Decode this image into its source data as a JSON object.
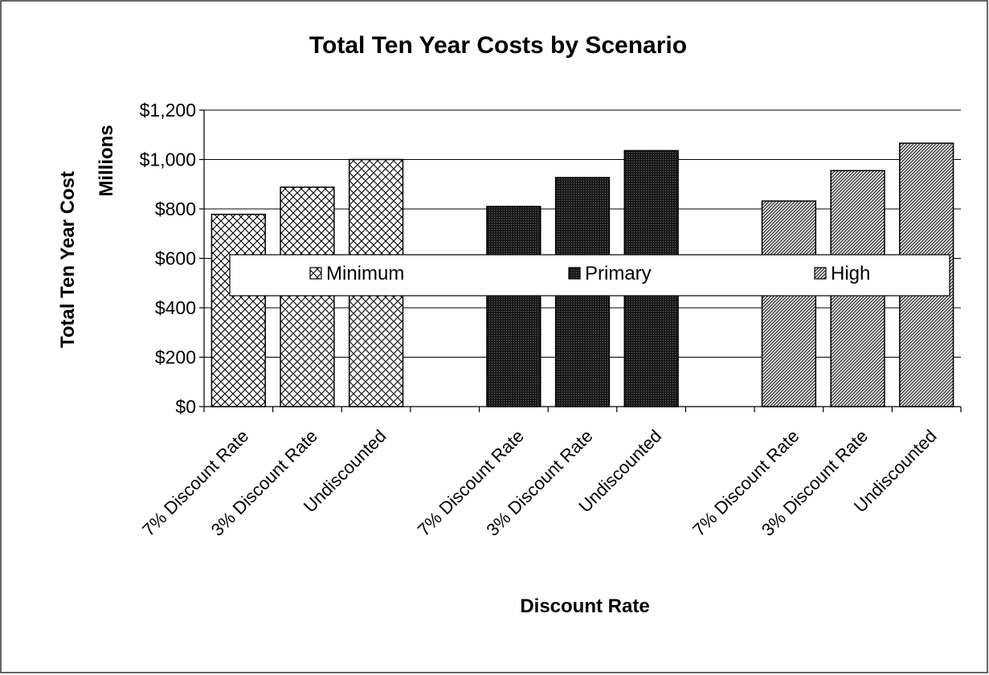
{
  "chart_data": {
    "type": "bar",
    "title": "Total Ten Year Costs by Scenario",
    "xlabel": "Discount Rate",
    "ylabel": "Total Ten Year Cost",
    "ylabel_secondary": "Millions",
    "ylim": [
      0,
      1200
    ],
    "ytick_values": [
      0,
      200,
      400,
      600,
      800,
      1000,
      1200
    ],
    "ytick_labels": [
      "$0",
      "$200",
      "$400",
      "$600",
      "$800",
      "$1,000",
      "$1,200"
    ],
    "grid": true,
    "legend_position": "center",
    "categories": [
      "7% Discount Rate",
      "3% Discount Rate",
      "Undiscounted",
      "7% Discount Rate",
      "3% Discount Rate",
      "Undiscounted",
      "7% Discount Rate",
      "3% Discount Rate",
      "Undiscounted"
    ],
    "series": [
      {
        "name": "Minimum",
        "pattern": "crosshatch",
        "color": "#000000",
        "values": [
          778,
          888,
          1000,
          null,
          null,
          null,
          null,
          null,
          null
        ]
      },
      {
        "name": "Primary",
        "pattern": "dense-dots",
        "color": "#1a1a1a",
        "values": [
          null,
          null,
          null,
          810,
          927,
          1036,
          null,
          null,
          null
        ]
      },
      {
        "name": "High",
        "pattern": "diagonal",
        "color": "#000000",
        "values": [
          null,
          null,
          null,
          null,
          null,
          null,
          832,
          955,
          1066
        ]
      }
    ]
  }
}
